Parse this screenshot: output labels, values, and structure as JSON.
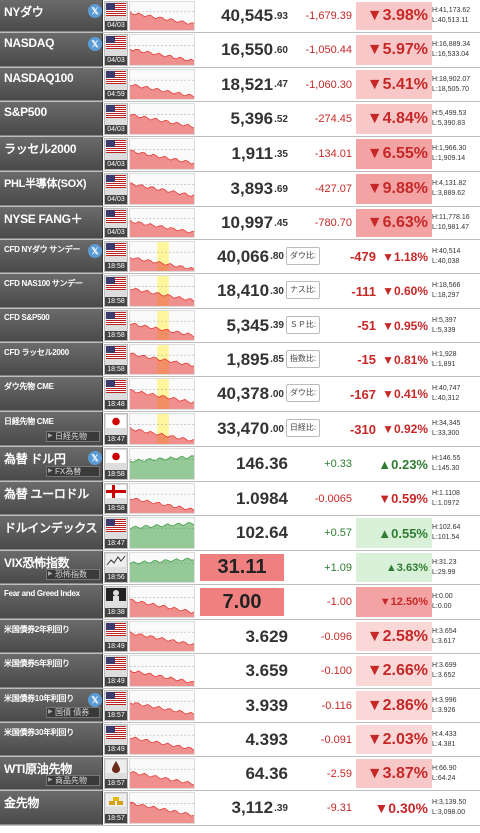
{
  "colors": {
    "down": "#c62828",
    "up": "#2e7d32",
    "label_bg": "#5a5a5a"
  },
  "rows": [
    {
      "label": "NYダウ",
      "x": true,
      "time": "04/03",
      "flag": "us",
      "value": "40,545",
      "value_dec": ".93",
      "change": "-1,679.39",
      "change_dir": "down",
      "pct": "▼3.98%",
      "high": "H:41,173.62",
      "low": "L:40,513.11"
    },
    {
      "label": "NASDAQ",
      "x": true,
      "time": "04/03",
      "flag": "us",
      "value": "16,550",
      "value_dec": ".60",
      "change": "-1,050.44",
      "change_dir": "down",
      "pct": "▼5.97%",
      "high": "H:16,889.34",
      "low": "L:16,533.04"
    },
    {
      "label": "NASDAQ100",
      "time": "04:59",
      "flag": "us",
      "value": "18,521",
      "value_dec": ".47",
      "change": "-1,060.30",
      "change_dir": "down",
      "pct": "▼5.41%",
      "high": "H:18,902.07",
      "low": "L:18,505.70"
    },
    {
      "label": "S&P500",
      "time": "04/03",
      "flag": "us",
      "value": "5,396",
      "value_dec": ".52",
      "change": "-274.45",
      "change_dir": "down",
      "pct": "▼4.84%",
      "high": "H:5,499.53",
      "low": "L:5,390.83"
    },
    {
      "label": "ラッセル2000",
      "time": "04/03",
      "flag": "us",
      "value": "1,911",
      "value_dec": ".35",
      "change": "-134.01",
      "change_dir": "down",
      "pct": "▼6.55%",
      "high": "H:1,966.30",
      "low": "L:1,909.14"
    },
    {
      "label": "PHL半導体(SOX)",
      "time": "04/03",
      "flag": "us",
      "value": "3,893",
      "value_dec": ".69",
      "change": "-427.07",
      "change_dir": "down",
      "pct": "▼9.88%",
      "high": "H:4,131.82",
      "low": "L:3,889.62"
    },
    {
      "label": "NYSE FANG＋",
      "time": "04/03",
      "flag": "us",
      "value": "10,997",
      "value_dec": ".45",
      "change": "-780.70",
      "change_dir": "down",
      "pct": "▼6.63%",
      "high": "H:11,778.16",
      "low": "L:10,981.47"
    },
    {
      "label": "CFD NYダウ サンデー",
      "x": true,
      "time": "18:58",
      "flag": "us",
      "value": "40,066",
      "value_dec": ".80",
      "tag": "ダウ比:",
      "change": "-479",
      "change_dir": "down",
      "pct": "▼1.18%",
      "high": "H:40,514",
      "low": "L:40,038"
    },
    {
      "label": "CFD NAS100 サンデー",
      "time": "18:58",
      "flag": "us",
      "value": "18,410",
      "value_dec": ".30",
      "tag": "ナス比:",
      "change": "-111",
      "change_dir": "down",
      "pct": "▼0.60%",
      "high": "H:18,566",
      "low": "L:18,297"
    },
    {
      "label": "CFD S&P500",
      "time": "18:58",
      "flag": "us",
      "value": "5,345",
      "value_dec": ".39",
      "tag": "ＳＰ比:",
      "change": "-51",
      "change_dir": "down",
      "pct": "▼0.95%",
      "high": "H:5,397",
      "low": "L:5,339"
    },
    {
      "label": "CFD ラッセル2000",
      "time": "18:58",
      "flag": "us",
      "value": "1,895",
      "value_dec": ".85",
      "tag": "指数比:",
      "change": "-15",
      "change_dir": "down",
      "pct": "▼0.81%",
      "high": "H:1,928",
      "low": "L:1,891"
    },
    {
      "label": "ダウ先物 CME",
      "time": "18:48",
      "flag": "us",
      "value": "40,378",
      "value_dec": ".00",
      "tag": "ダウ比:",
      "change": "-167",
      "change_dir": "down",
      "pct": "▼0.41%",
      "high": "H:40,747",
      "low": "L:40,312"
    },
    {
      "label": "日経先物 CME",
      "sub": "日経先物",
      "time": "18:47",
      "flag": "jp",
      "value": "33,470",
      "value_dec": ".00",
      "tag": "日経比:",
      "change": "-310",
      "change_dir": "down",
      "pct": "▼0.92%",
      "high": "H:34,345",
      "low": "L:33,300"
    },
    {
      "label": "為替 ドル円",
      "sub": "FX為替",
      "x": true,
      "time": "18:58",
      "flag": "jp",
      "value": "146.36",
      "change": "+0.33",
      "change_dir": "up",
      "pct": "▲0.23%",
      "high": "H:146.55",
      "low": "L:145.30"
    },
    {
      "label": "為替 ユーロドル",
      "time": "18:58",
      "flag": "eu",
      "value": "1.0984",
      "change": "-0.0065",
      "change_dir": "down",
      "pct": "▼0.59%",
      "high": "H:1.1108",
      "low": "L:1.0972"
    },
    {
      "label": "ドルインデックス",
      "time": "18:47",
      "flag": "us",
      "value": "102.64",
      "change": "+0.57",
      "change_dir": "up",
      "pct": "▲0.55%",
      "high": "H:102.64",
      "low": "L:101.54"
    },
    {
      "label": "VIX恐怖指数",
      "sub": "恐怖指数",
      "time": "18:56",
      "flag": "vix",
      "value": "31.11",
      "change": "+1.09",
      "change_dir": "up",
      "pct": "▲3.63%",
      "high": "H:31.23",
      "low": "L:29.99"
    },
    {
      "label": "Fear and Greed Index",
      "time": "18:38",
      "flag": "fg",
      "value": "7.00",
      "change": "-1.00",
      "change_dir": "down",
      "pct": "▼12.50%",
      "high": "H:0.00",
      "low": "L:0.00"
    },
    {
      "label": "米国債券2年利回り",
      "time": "18:49",
      "flag": "us",
      "value": "3.629",
      "change": "-0.096",
      "change_dir": "down",
      "pct": "▼2.58%",
      "high": "H:3.654",
      "low": "L:3.617"
    },
    {
      "label": "米国債券5年利回り",
      "time": "18:49",
      "flag": "us",
      "value": "3.659",
      "change": "-0.100",
      "change_dir": "down",
      "pct": "▼2.66%",
      "high": "H:3.699",
      "low": "L:3.652"
    },
    {
      "label": "米国債券10年利回り",
      "sub": "国債 債券",
      "x": true,
      "time": "18:57",
      "flag": "us",
      "value": "3.939",
      "change": "-0.116",
      "change_dir": "down",
      "pct": "▼2.86%",
      "high": "H:3.996",
      "low": "L:3.926"
    },
    {
      "label": "米国債券30年利回り",
      "time": "18:49",
      "flag": "us",
      "value": "4.393",
      "change": "-0.091",
      "change_dir": "down",
      "pct": "▼2.03%",
      "high": "H:4.433",
      "low": "L:4.381"
    },
    {
      "label": "WTI原油先物",
      "sub": "商品先物",
      "time": "18:57",
      "flag": "oil",
      "value": "64.36",
      "change": "-2.59",
      "change_dir": "down",
      "pct": "▼3.87%",
      "high": "H:66.90",
      "low": "L:64.24"
    },
    {
      "label": "金先物",
      "time": "18:57",
      "flag": "gold",
      "value": "3,112",
      "value_dec": ".39",
      "change": "-9.31",
      "change_dir": "down",
      "pct": "▼0.30%",
      "high": "H:3,139.50",
      "low": "L:3,098.00"
    }
  ]
}
